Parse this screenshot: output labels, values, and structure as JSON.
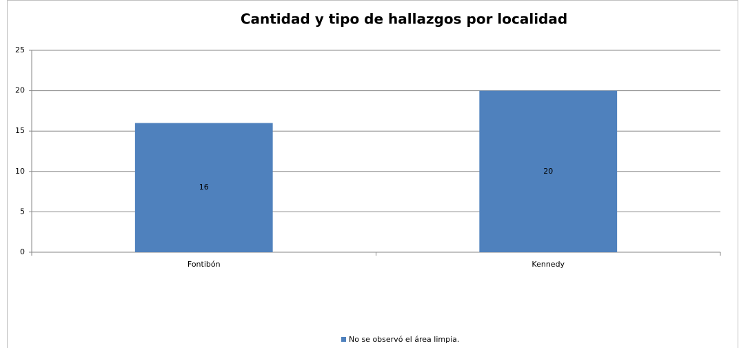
{
  "chart_data": {
    "type": "bar",
    "title": "Cantidad y tipo de hallazgos por localidad",
    "categories": [
      "Fontibón",
      "Kennedy"
    ],
    "series": [
      {
        "name": "No se observó el área limpia.",
        "color": "#4f81bd",
        "values": [
          16,
          20
        ]
      }
    ],
    "ylim": [
      0,
      25
    ],
    "yticks": [
      0,
      5,
      10,
      15,
      20,
      25
    ],
    "grid": true,
    "legend": "bottom"
  }
}
